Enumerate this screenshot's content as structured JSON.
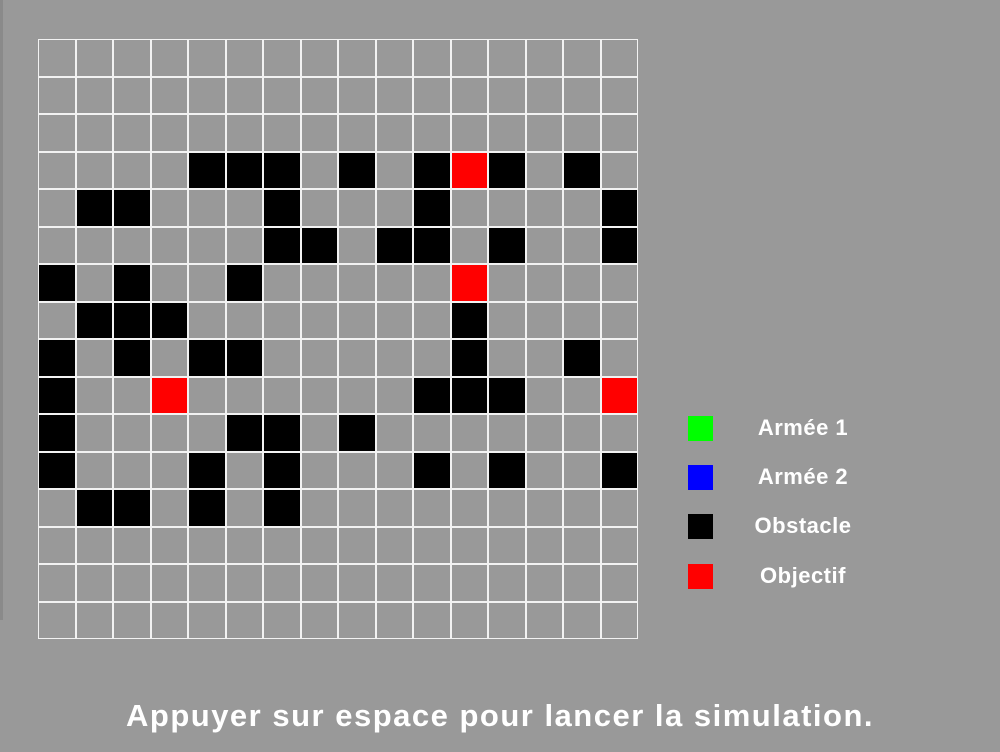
{
  "board": {
    "rows": 16,
    "cols": 16,
    "obstacles": [
      [
        3,
        4
      ],
      [
        3,
        5
      ],
      [
        3,
        6
      ],
      [
        3,
        8
      ],
      [
        3,
        10
      ],
      [
        3,
        12
      ],
      [
        3,
        14
      ],
      [
        4,
        1
      ],
      [
        4,
        2
      ],
      [
        4,
        6
      ],
      [
        4,
        10
      ],
      [
        4,
        15
      ],
      [
        5,
        6
      ],
      [
        5,
        7
      ],
      [
        5,
        9
      ],
      [
        5,
        10
      ],
      [
        5,
        12
      ],
      [
        5,
        15
      ],
      [
        6,
        0
      ],
      [
        6,
        2
      ],
      [
        6,
        5
      ],
      [
        7,
        1
      ],
      [
        7,
        2
      ],
      [
        7,
        3
      ],
      [
        7,
        11
      ],
      [
        8,
        0
      ],
      [
        8,
        2
      ],
      [
        8,
        4
      ],
      [
        8,
        5
      ],
      [
        8,
        11
      ],
      [
        8,
        14
      ],
      [
        9,
        0
      ],
      [
        9,
        10
      ],
      [
        9,
        11
      ],
      [
        9,
        12
      ],
      [
        10,
        0
      ],
      [
        10,
        5
      ],
      [
        10,
        6
      ],
      [
        10,
        8
      ],
      [
        11,
        0
      ],
      [
        11,
        4
      ],
      [
        11,
        6
      ],
      [
        11,
        10
      ],
      [
        11,
        12
      ],
      [
        11,
        15
      ],
      [
        12,
        1
      ],
      [
        12,
        2
      ],
      [
        12,
        4
      ],
      [
        12,
        6
      ]
    ],
    "objectives": [
      [
        3,
        11
      ],
      [
        6,
        11
      ],
      [
        9,
        3
      ],
      [
        9,
        15
      ]
    ],
    "colors": {
      "empty": "#999999",
      "grid_line": "#f2f2f2",
      "obstacle": "#000000",
      "objective": "#ff0000"
    }
  },
  "legend": {
    "items": [
      {
        "label": "Armée 1",
        "color": "#00ff00"
      },
      {
        "label": "Armée 2",
        "color": "#0000ff"
      },
      {
        "label": "Obstacle",
        "color": "#000000"
      },
      {
        "label": "Objectif",
        "color": "#ff0000"
      }
    ]
  },
  "instruction": "Appuyer sur espace pour lancer la simulation."
}
